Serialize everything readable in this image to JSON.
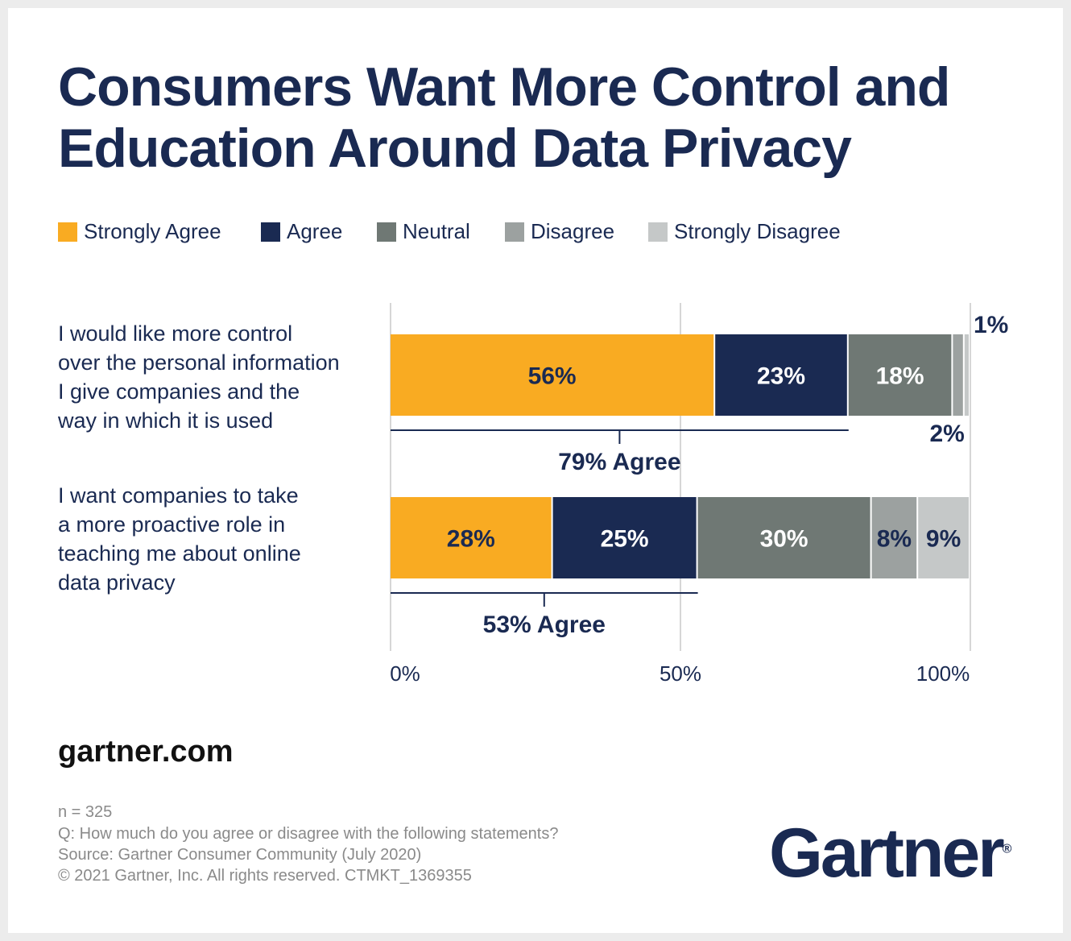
{
  "title_line1": "Consumers Want More Control and",
  "title_line2": "Education Around Data Privacy",
  "chart_data": {
    "type": "bar",
    "orientation": "horizontal",
    "stacked": true,
    "categories": [
      "I would like more control over the personal information I give companies and the way in which it is used",
      "I want companies to take a more proactive role in teaching me about online data privacy"
    ],
    "category_lines": [
      [
        "I would like more control",
        "over the personal information",
        "I give companies and the",
        "way in which it is used"
      ],
      [
        "I want companies to take",
        "a more proactive role in",
        "teaching me about online",
        "data privacy"
      ]
    ],
    "series": [
      {
        "name": "Strongly Agree",
        "color": "#f9ab22",
        "values": [
          56,
          28
        ]
      },
      {
        "name": "Agree",
        "color": "#1a2a52",
        "values": [
          23,
          25
        ]
      },
      {
        "name": "Neutral",
        "color": "#6f7874",
        "values": [
          18,
          30
        ]
      },
      {
        "name": "Disagree",
        "color": "#9ca1a0",
        "values": [
          2,
          8
        ]
      },
      {
        "name": "Strongly Disagree",
        "color": "#c5c8c8",
        "values": [
          1,
          9
        ]
      }
    ],
    "data_labels": [
      [
        "56%",
        "23%",
        "18%",
        "2%",
        "1%"
      ],
      [
        "28%",
        "25%",
        "30%",
        "8%",
        "9%"
      ]
    ],
    "agree_totals": [
      "79% Agree",
      "53% Agree"
    ],
    "agree_values": [
      79,
      53
    ],
    "xlim": [
      0,
      100
    ],
    "xticks": [
      "0%",
      "50%",
      "100%"
    ],
    "grid": true,
    "legend": "top-left"
  },
  "footer": {
    "site": "gartner.com",
    "notes": [
      "n = 325",
      "Q: How much do you agree or disagree with the following statements?",
      "Source: Gartner Consumer Community (July 2020)",
      "© 2021 Gartner, Inc. All rights reserved. CTMKT_1369355"
    ],
    "logo": "Gartner"
  }
}
